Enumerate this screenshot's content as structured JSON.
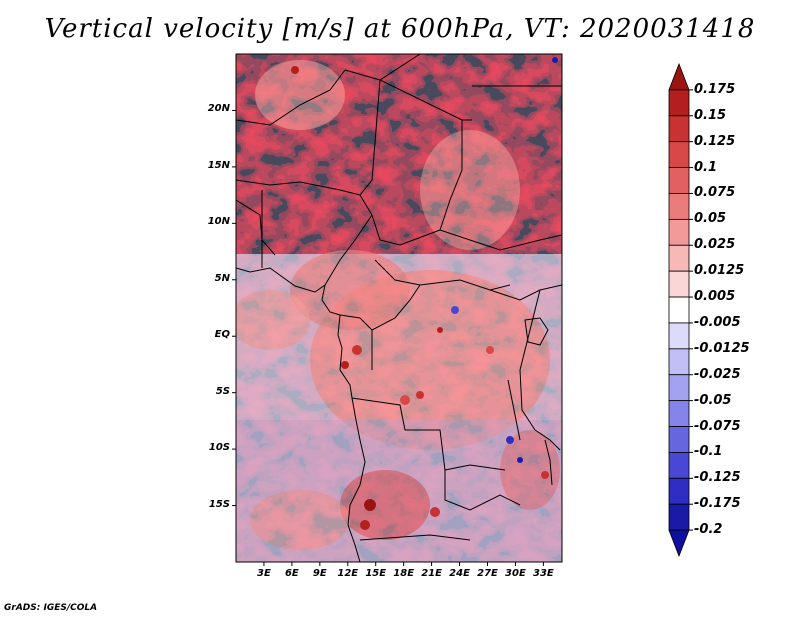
{
  "title": "Vertical velocity [m/s] at 600hPa, VT: 2020031418",
  "footer": "GrADS: IGES/COLA",
  "map": {
    "lon_range": [
      0,
      35
    ],
    "lat_range": [
      -20,
      25
    ],
    "lat_ticks": [
      {
        "value": 20,
        "label": "20N"
      },
      {
        "value": 15,
        "label": "15N"
      },
      {
        "value": 10,
        "label": "10N"
      },
      {
        "value": 5,
        "label": "5N"
      },
      {
        "value": 0,
        "label": "EQ"
      },
      {
        "value": -5,
        "label": "5S"
      },
      {
        "value": -10,
        "label": "10S"
      },
      {
        "value": -15,
        "label": "15S"
      }
    ],
    "lon_ticks": [
      {
        "value": 3,
        "label": "3E"
      },
      {
        "value": 6,
        "label": "6E"
      },
      {
        "value": 9,
        "label": "9E"
      },
      {
        "value": 12,
        "label": "12E"
      },
      {
        "value": 15,
        "label": "15E"
      },
      {
        "value": 18,
        "label": "18E"
      },
      {
        "value": 21,
        "label": "21E"
      },
      {
        "value": 24,
        "label": "24E"
      },
      {
        "value": 27,
        "label": "27E"
      },
      {
        "value": 30,
        "label": "30E"
      },
      {
        "value": 33,
        "label": "33E"
      }
    ]
  },
  "colorbar": {
    "labels": [
      "0.175",
      "0.15",
      "0.125",
      "0.1",
      "0.075",
      "0.05",
      "0.025",
      "0.0125",
      "0.005",
      "-0.005",
      "-0.0125",
      "-0.025",
      "-0.05",
      "-0.075",
      "-0.1",
      "-0.125",
      "-0.175",
      "-0.2"
    ],
    "colors": [
      "#9b1414",
      "#b31e1e",
      "#c83232",
      "#d84848",
      "#e26060",
      "#ea7c7c",
      "#f29a9a",
      "#f7b8b8",
      "#fbd6d6",
      "#ffffff",
      "#dcdcfa",
      "#c0c0f6",
      "#a2a2f0",
      "#8484ea",
      "#6666e0",
      "#4848d4",
      "#2e2ec4",
      "#1a1aa8",
      "#1010a0"
    ]
  }
}
